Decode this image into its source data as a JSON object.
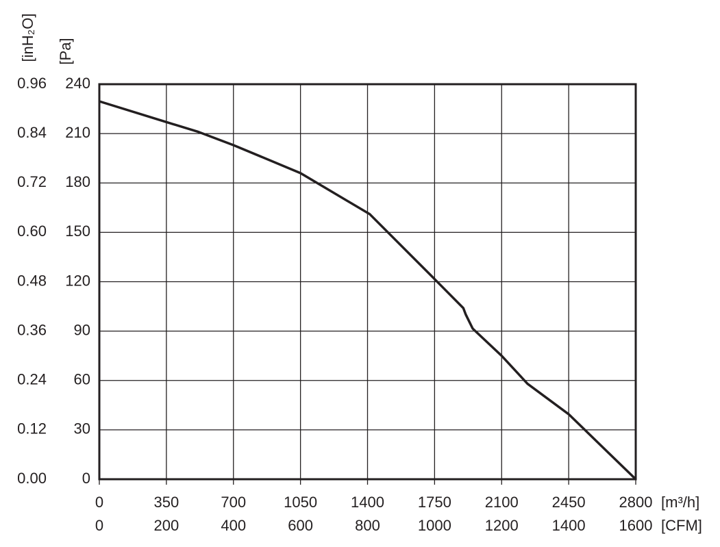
{
  "chart_data": {
    "type": "line",
    "x_label": "[m³/h]",
    "x2_label": "[CFM]",
    "y_label": "[Pa]",
    "y2_label": "[inH₂O]",
    "x": [
      0,
      350,
      518,
      700,
      1050,
      1412,
      1738,
      1900,
      1913,
      1949,
      2100,
      2235,
      2450,
      2800
    ],
    "series": [
      {
        "color": "#231f20",
        "values": [
          229.6,
          217,
          211,
          203,
          186,
          161,
          123,
          104,
          100,
          91.5,
          75,
          58,
          39.5,
          0
        ]
      }
    ],
    "xlim": [
      0,
      2800
    ],
    "xticks": [
      0,
      350,
      700,
      1050,
      1400,
      1750,
      2100,
      2450,
      2800
    ],
    "x2lim": [
      0,
      1600
    ],
    "x2ticks": [
      0,
      200,
      400,
      600,
      800,
      1000,
      1200,
      1400,
      1600
    ],
    "ylim": [
      0,
      240
    ],
    "yticks": [
      0,
      30,
      60,
      90,
      120,
      150,
      180,
      210,
      240
    ],
    "y2lim": [
      0,
      0.96
    ],
    "y2ticks": [
      {
        "value": 0,
        "label": "0.00"
      },
      0.12,
      0.24,
      0.36,
      0.48,
      {
        "value": 0.6,
        "label": "0.60"
      },
      0.72,
      0.84,
      0.96
    ],
    "grid": true
  }
}
